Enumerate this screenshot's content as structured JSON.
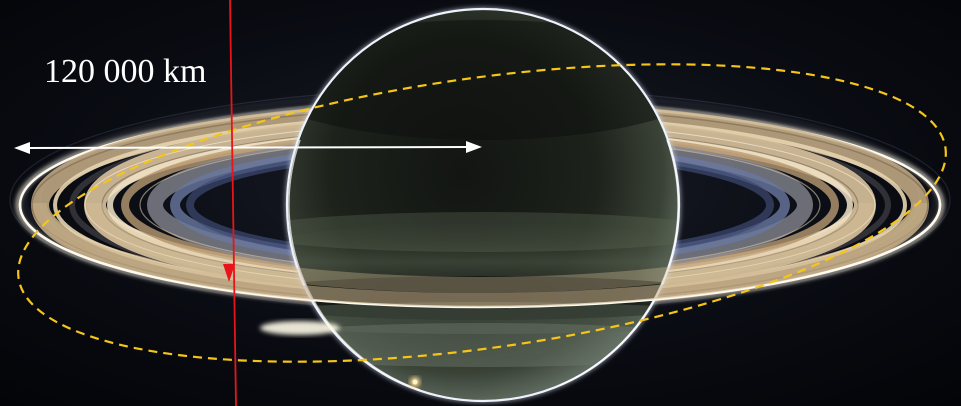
{
  "image": {
    "subject": "saturn-backlit-with-rings",
    "scale_label": "120 000 km",
    "colors": {
      "space_background": "#05070c",
      "planet_rim": "#e8ecf6",
      "ring_light": "#f4efe0",
      "ring_warm": "#c9a97c",
      "scale_arrow": "#ffffff",
      "orbit_dashed": "#f5c518",
      "trajectory_line": "#e8141a"
    },
    "annotations": [
      {
        "kind": "double-arrow",
        "color": "white",
        "meaning": "scale"
      },
      {
        "kind": "dashed-ellipse",
        "color": "yellow"
      },
      {
        "kind": "line-with-arrow",
        "color": "red",
        "direction": "down"
      }
    ]
  }
}
